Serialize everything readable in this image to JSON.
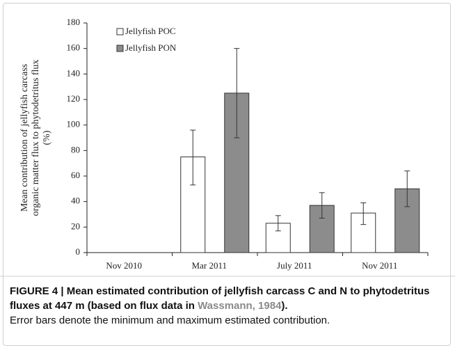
{
  "chart_data": {
    "type": "bar",
    "ylabel": [
      "Mean contribution of jellyfish carcass",
      "organic matter flux to phytodetritus flux",
      "(%)"
    ],
    "categories": [
      "Nov 2010",
      "Mar 2011",
      "July 2011",
      "Nov 2011"
    ],
    "series": [
      {
        "name": "Jellyfish POC",
        "color": "#ffffff",
        "values": [
          null,
          75,
          23,
          31
        ],
        "error_min": [
          null,
          53,
          17,
          22
        ],
        "error_max": [
          null,
          96,
          29,
          39
        ]
      },
      {
        "name": "Jellyfish PON",
        "color": "#8c8c8c",
        "values": [
          null,
          125,
          37,
          50
        ],
        "error_min": [
          null,
          90,
          27,
          36
        ],
        "error_max": [
          null,
          160,
          47,
          64
        ]
      }
    ],
    "ylim": [
      0,
      180
    ],
    "yticks": [
      0,
      20,
      40,
      60,
      80,
      100,
      120,
      140,
      160,
      180
    ],
    "grid": false,
    "legend": "upper left"
  },
  "caption": {
    "bold": "FIGURE 4 | Mean estimated contribution of jellyfish carcass C and N to phytodetritus fluxes at 447 m (based on flux data in ",
    "link": "Wassmann, 1984",
    "bold_end": ").",
    "note": "Error bars denote the minimum and maximum estimated contribution."
  }
}
